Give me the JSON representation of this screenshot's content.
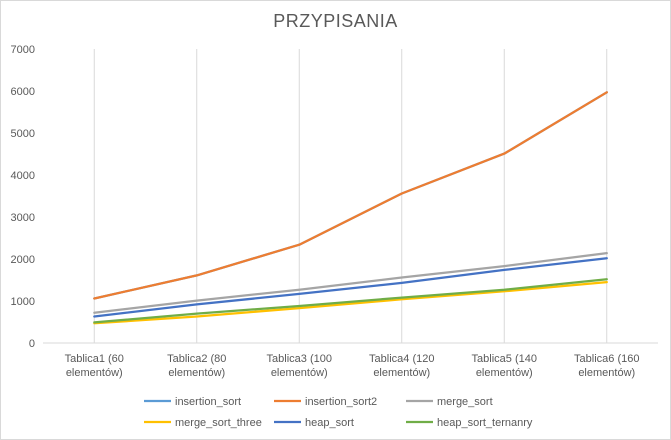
{
  "chart_data": {
    "type": "line",
    "title": "PRZYPISANIA",
    "xlabel": "",
    "ylabel": "",
    "ylim": [
      0,
      7000
    ],
    "yticks": [
      0,
      1000,
      2000,
      3000,
      4000,
      5000,
      6000,
      7000
    ],
    "grid": "vertical",
    "legend_position": "bottom",
    "categories": [
      [
        "Tablica1 (60",
        "elementów)"
      ],
      [
        "Tablica2 (80",
        "elementów)"
      ],
      [
        "Tablica3 (100",
        "elementów)"
      ],
      [
        "Tablica4 (120",
        "elementów)"
      ],
      [
        "Tablica5 (140",
        "elementów)"
      ],
      [
        "Tablica6 (160",
        "elementów)"
      ]
    ],
    "series": [
      {
        "name": "insertion_sort",
        "color": "#5b9bd5",
        "values": [
          1060,
          1610,
          2340,
          3560,
          4510,
          5970
        ]
      },
      {
        "name": "insertion_sort2",
        "color": "#ed7d31",
        "values": [
          1060,
          1610,
          2340,
          3560,
          4510,
          5970
        ]
      },
      {
        "name": "merge_sort",
        "color": "#a5a5a5",
        "values": [
          720,
          1010,
          1270,
          1560,
          1830,
          2140
        ]
      },
      {
        "name": "merge_sort_three",
        "color": "#ffc000",
        "values": [
          470,
          630,
          830,
          1040,
          1230,
          1450
        ]
      },
      {
        "name": "heap_sort",
        "color": "#4472c4",
        "values": [
          630,
          920,
          1170,
          1430,
          1740,
          2020
        ]
      },
      {
        "name": "heap_sort_ternanry",
        "color": "#70ad47",
        "values": [
          490,
          700,
          880,
          1080,
          1270,
          1520
        ]
      }
    ]
  }
}
